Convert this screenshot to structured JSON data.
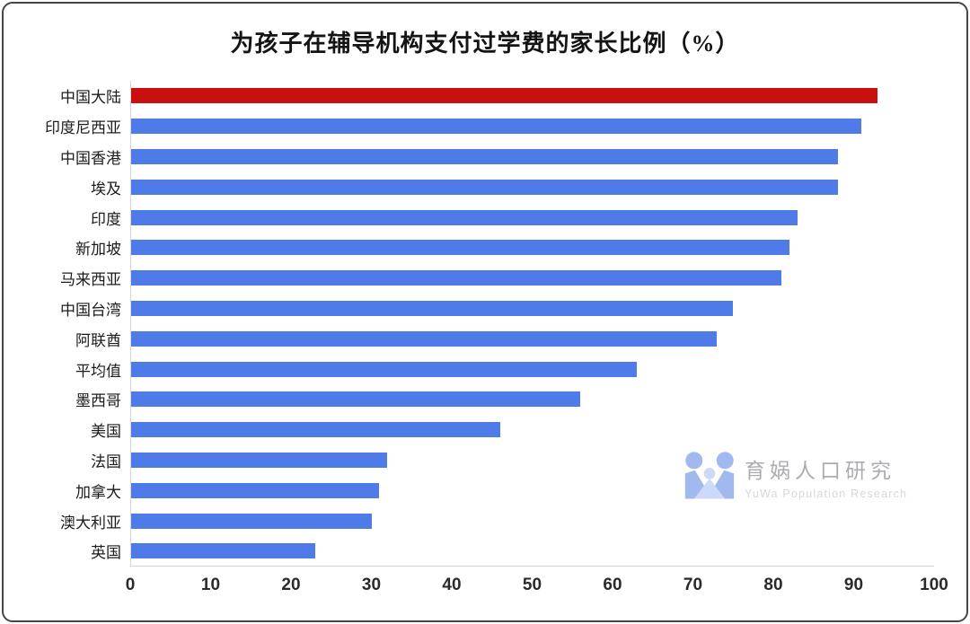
{
  "page": {
    "background": "#ffffff",
    "frame_border_color": "#454545",
    "axis_line_color": "#d6d6d6"
  },
  "chart_data": {
    "type": "bar",
    "orientation": "horizontal",
    "title": "为孩子在辅导机构支付过学费的家长比例（%）",
    "categories": [
      "中国大陆",
      "印度尼西亚",
      "中国香港",
      "埃及",
      "印度",
      "新加坡",
      "马来西亚",
      "中国台湾",
      "阿联酋",
      "平均值",
      "墨西哥",
      "美国",
      "法国",
      "加拿大",
      "澳大利亚",
      "英国"
    ],
    "values": [
      93,
      91,
      88,
      88,
      83,
      82,
      81,
      75,
      73,
      63,
      56,
      46,
      32,
      31,
      30,
      23
    ],
    "xlabel": "",
    "ylabel": "",
    "xlim": [
      0,
      100
    ],
    "x_ticks": [
      0,
      10,
      20,
      30,
      40,
      50,
      60,
      70,
      80,
      90,
      100
    ],
    "grid": false,
    "legend": false,
    "bar_color": "#4e7be8",
    "highlight_category": "中国大陆",
    "highlight_color": "#c9100e"
  },
  "watermark": {
    "brand": "育娲人口研究",
    "brand_en": "YuWa Population Research",
    "logo_icon": "yuwa-family-logo",
    "logo_color": "#9db6ef",
    "logo_light_color": "#cad8f8"
  }
}
